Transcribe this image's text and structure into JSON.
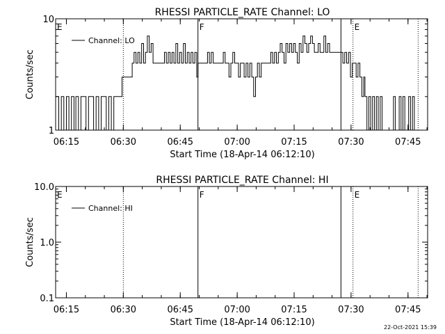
{
  "chart_data": [
    {
      "type": "line",
      "title": "RHESSI PARTICLE_RATE Channel: LO",
      "xlabel": "Start Time (18-Apr-14 06:12:10)",
      "ylabel": "Counts/sec",
      "yscale": "log",
      "ylim": [
        1,
        10
      ],
      "xlim": [
        "06:12:10",
        "07:50:10"
      ],
      "x_tick_labels": [
        "06:15",
        "06:30",
        "06:45",
        "07:00",
        "07:15",
        "07:30",
        "07:45"
      ],
      "y_tick_labels": [
        "1",
        "10"
      ],
      "legend": {
        "position": "top-left",
        "entries": [
          "Channel: LO"
        ]
      },
      "markers": [
        {
          "label": "E",
          "time": "06:12:10",
          "style": "none"
        },
        {
          "label": "",
          "time": "06:30:00",
          "style": "dotted"
        },
        {
          "label": "F",
          "time": "06:49:40",
          "style": "solid"
        },
        {
          "label": "",
          "time": "07:27:20",
          "style": "solid"
        },
        {
          "label": "E",
          "time": "07:30:30",
          "style": "dotted"
        },
        {
          "label": "",
          "time": "07:47:40",
          "style": "dotted"
        }
      ],
      "series": [
        {
          "name": "Channel: LO",
          "points": [
            [
              "06:12:10",
              2
            ],
            [
              "06:13:00",
              1
            ],
            [
              "06:13:40",
              2
            ],
            [
              "06:14:20",
              1
            ],
            [
              "06:15:00",
              2
            ],
            [
              "06:15:40",
              1
            ],
            [
              "06:16:20",
              2
            ],
            [
              "06:17:00",
              1
            ],
            [
              "06:17:30",
              2
            ],
            [
              "06:18:10",
              1
            ],
            [
              "06:18:50",
              2
            ],
            [
              "06:19:30",
              2
            ],
            [
              "06:20:10",
              1
            ],
            [
              "06:20:50",
              2
            ],
            [
              "06:21:30",
              2
            ],
            [
              "06:22:10",
              1
            ],
            [
              "06:22:50",
              2
            ],
            [
              "06:23:30",
              1
            ],
            [
              "06:24:10",
              2
            ],
            [
              "06:24:50",
              2
            ],
            [
              "06:25:30",
              1
            ],
            [
              "06:26:10",
              2
            ],
            [
              "06:26:50",
              1
            ],
            [
              "06:27:30",
              2
            ],
            [
              "06:28:10",
              2
            ],
            [
              "06:28:50",
              2
            ],
            [
              "06:29:40",
              3
            ],
            [
              "06:30:20",
              3
            ],
            [
              "06:31:00",
              3
            ],
            [
              "06:31:40",
              3
            ],
            [
              "06:32:20",
              4
            ],
            [
              "06:32:50",
              5
            ],
            [
              "06:33:20",
              4
            ],
            [
              "06:33:50",
              5
            ],
            [
              "06:34:20",
              4
            ],
            [
              "06:34:50",
              6
            ],
            [
              "06:35:20",
              4
            ],
            [
              "06:35:50",
              5
            ],
            [
              "06:36:20",
              7
            ],
            [
              "06:36:50",
              5
            ],
            [
              "06:37:20",
              6
            ],
            [
              "06:37:50",
              4
            ],
            [
              "06:38:20",
              4
            ],
            [
              "06:38:50",
              4
            ],
            [
              "06:39:20",
              4
            ],
            [
              "06:39:50",
              4
            ],
            [
              "06:40:20",
              4
            ],
            [
              "06:40:50",
              5
            ],
            [
              "06:41:20",
              4
            ],
            [
              "06:41:50",
              5
            ],
            [
              "06:42:20",
              4
            ],
            [
              "06:42:50",
              5
            ],
            [
              "06:43:20",
              4
            ],
            [
              "06:43:50",
              6
            ],
            [
              "06:44:20",
              4
            ],
            [
              "06:44:50",
              5
            ],
            [
              "06:45:20",
              4
            ],
            [
              "06:45:50",
              6
            ],
            [
              "06:46:20",
              4
            ],
            [
              "06:46:50",
              5
            ],
            [
              "06:47:20",
              4
            ],
            [
              "06:47:50",
              5
            ],
            [
              "06:48:20",
              4
            ],
            [
              "06:48:50",
              5
            ],
            [
              "06:49:20",
              3
            ],
            [
              "06:49:40",
              4
            ],
            [
              "06:50:20",
              4
            ],
            [
              "06:51:00",
              4
            ],
            [
              "06:51:40",
              4
            ],
            [
              "06:52:10",
              5
            ],
            [
              "06:52:40",
              4
            ],
            [
              "06:53:10",
              5
            ],
            [
              "06:53:40",
              4
            ],
            [
              "06:54:20",
              4
            ],
            [
              "06:55:00",
              4
            ],
            [
              "06:55:40",
              4
            ],
            [
              "06:56:20",
              5
            ],
            [
              "06:56:50",
              4
            ],
            [
              "06:57:20",
              4
            ],
            [
              "06:57:50",
              3
            ],
            [
              "06:58:20",
              4
            ],
            [
              "06:58:50",
              5
            ],
            [
              "06:59:20",
              4
            ],
            [
              "06:59:50",
              4
            ],
            [
              "07:00:20",
              3
            ],
            [
              "07:00:50",
              4
            ],
            [
              "07:01:20",
              4
            ],
            [
              "07:01:50",
              3
            ],
            [
              "07:02:20",
              4
            ],
            [
              "07:02:50",
              3
            ],
            [
              "07:03:20",
              4
            ],
            [
              "07:03:50",
              3
            ],
            [
              "07:04:20",
              2
            ],
            [
              "07:04:50",
              3
            ],
            [
              "07:05:20",
              4
            ],
            [
              "07:05:50",
              3
            ],
            [
              "07:06:20",
              4
            ],
            [
              "07:06:50",
              4
            ],
            [
              "07:07:20",
              4
            ],
            [
              "07:07:50",
              4
            ],
            [
              "07:08:20",
              4
            ],
            [
              "07:08:50",
              5
            ],
            [
              "07:09:20",
              4
            ],
            [
              "07:09:50",
              5
            ],
            [
              "07:10:20",
              4
            ],
            [
              "07:10:50",
              5
            ],
            [
              "07:11:20",
              6
            ],
            [
              "07:11:50",
              5
            ],
            [
              "07:12:20",
              4
            ],
            [
              "07:12:50",
              6
            ],
            [
              "07:13:20",
              5
            ],
            [
              "07:13:50",
              6
            ],
            [
              "07:14:20",
              5
            ],
            [
              "07:14:50",
              6
            ],
            [
              "07:15:20",
              5
            ],
            [
              "07:15:50",
              4
            ],
            [
              "07:16:20",
              6
            ],
            [
              "07:16:50",
              5
            ],
            [
              "07:17:20",
              7
            ],
            [
              "07:17:50",
              6
            ],
            [
              "07:18:20",
              5
            ],
            [
              "07:18:50",
              6
            ],
            [
              "07:19:20",
              7
            ],
            [
              "07:19:50",
              6
            ],
            [
              "07:20:20",
              5
            ],
            [
              "07:20:50",
              5
            ],
            [
              "07:21:20",
              6
            ],
            [
              "07:21:50",
              5
            ],
            [
              "07:22:20",
              5
            ],
            [
              "07:22:50",
              7
            ],
            [
              "07:23:20",
              5
            ],
            [
              "07:23:50",
              6
            ],
            [
              "07:24:20",
              5
            ],
            [
              "07:24:50",
              5
            ],
            [
              "07:25:20",
              5
            ],
            [
              "07:25:50",
              5
            ],
            [
              "07:26:20",
              5
            ],
            [
              "07:26:50",
              5
            ],
            [
              "07:27:20",
              5
            ],
            [
              "07:27:50",
              4
            ],
            [
              "07:28:20",
              5
            ],
            [
              "07:28:50",
              4
            ],
            [
              "07:29:20",
              5
            ],
            [
              "07:29:50",
              3
            ],
            [
              "07:30:20",
              4
            ],
            [
              "07:30:50",
              4
            ],
            [
              "07:31:20",
              3
            ],
            [
              "07:31:50",
              4
            ],
            [
              "07:32:20",
              3
            ],
            [
              "07:32:50",
              2
            ],
            [
              "07:33:20",
              3
            ],
            [
              "07:33:40",
              2
            ],
            [
              "07:34:10",
              1
            ],
            [
              "07:34:40",
              2
            ],
            [
              "07:35:10",
              1
            ],
            [
              "07:35:40",
              2
            ],
            [
              "07:36:10",
              1
            ],
            [
              "07:36:40",
              2
            ],
            [
              "07:37:10",
              1
            ],
            [
              "07:37:40",
              2
            ],
            [
              "07:38:10",
              1
            ],
            [
              "07:38:40",
              1
            ],
            [
              "07:39:10",
              1
            ],
            [
              "07:39:40",
              1
            ],
            [
              "07:40:10",
              1
            ],
            [
              "07:40:40",
              1
            ],
            [
              "07:41:10",
              2
            ],
            [
              "07:41:40",
              1
            ],
            [
              "07:42:10",
              1
            ],
            [
              "07:42:40",
              2
            ],
            [
              "07:43:10",
              1
            ],
            [
              "07:43:40",
              2
            ],
            [
              "07:44:10",
              1
            ],
            [
              "07:44:40",
              1
            ],
            [
              "07:45:10",
              2
            ],
            [
              "07:45:40",
              1
            ],
            [
              "07:46:10",
              2
            ],
            [
              "07:46:40",
              1
            ],
            [
              "07:47:10",
              1
            ]
          ]
        }
      ]
    },
    {
      "type": "line",
      "title": "RHESSI PARTICLE_RATE Channel: HI",
      "xlabel": "Start Time (18-Apr-14 06:12:10)",
      "ylabel": "Counts/sec",
      "yscale": "log",
      "ylim": [
        0.1,
        10
      ],
      "xlim": [
        "06:12:10",
        "07:50:10"
      ],
      "x_tick_labels": [
        "06:15",
        "06:30",
        "06:45",
        "07:00",
        "07:15",
        "07:30",
        "07:45"
      ],
      "y_tick_labels": [
        "0.1",
        "1.0",
        "10.0"
      ],
      "legend": {
        "position": "top-left",
        "entries": [
          "Channel: HI"
        ]
      },
      "markers": [
        {
          "label": "E",
          "time": "06:12:10",
          "style": "none"
        },
        {
          "label": "",
          "time": "06:30:00",
          "style": "dotted"
        },
        {
          "label": "F",
          "time": "06:49:40",
          "style": "solid"
        },
        {
          "label": "",
          "time": "07:27:20",
          "style": "solid"
        },
        {
          "label": "E",
          "time": "07:30:30",
          "style": "dotted"
        },
        {
          "label": "",
          "time": "07:47:40",
          "style": "dotted"
        }
      ],
      "series": [
        {
          "name": "Channel: HI",
          "points": []
        }
      ]
    }
  ],
  "footer": {
    "timestamp": "22-Oct-2021 15:39"
  },
  "colors": {
    "background": "#ffffff",
    "ink": "#000000"
  }
}
